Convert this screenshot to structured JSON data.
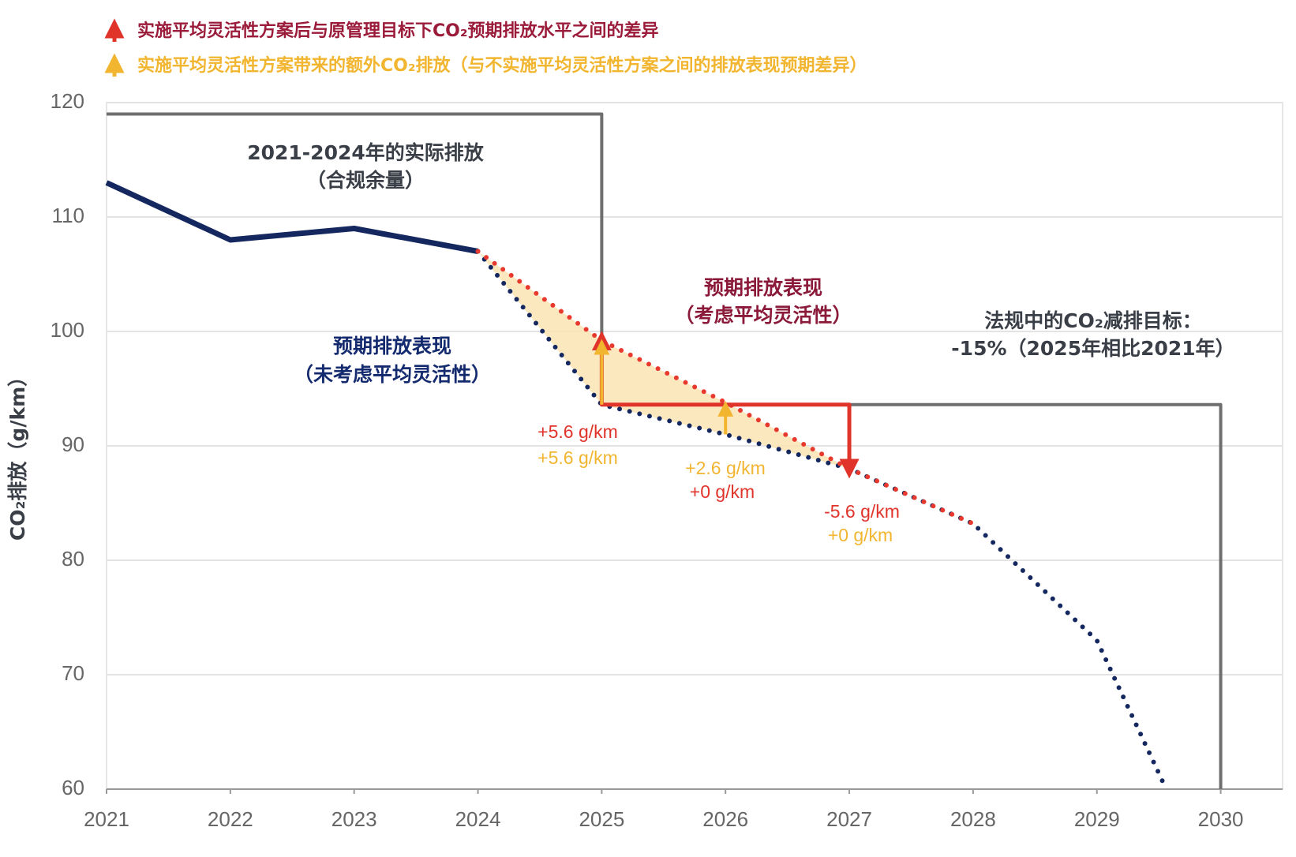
{
  "chart_data": {
    "type": "line",
    "y_label": "CO₂排放（g/km）",
    "xlim": [
      2021,
      2030.5
    ],
    "xticks": [
      2021,
      2022,
      2023,
      2024,
      2025,
      2026,
      2027,
      2028,
      2029,
      2030
    ],
    "ylim": [
      60,
      120
    ],
    "yticks": [
      60,
      70,
      80,
      90,
      100,
      110,
      120
    ],
    "grid": true,
    "legend": [
      {
        "label": "实施平均灵活性方案后与原管理目标下CO₂预期排放水平之间的差异",
        "color": "#e0342b",
        "text_color": "#9b1b3a"
      },
      {
        "label": "实施平均灵活性方案带来的额外CO₂排放（与不实施平均灵活性方案之间的排放表现预期差异）",
        "color": "#f2b530",
        "text_color": "#f2b530"
      }
    ],
    "series": [
      {
        "style": "solid",
        "color": "#6e6e6e",
        "x": [
          2021,
          2025,
          2025,
          2030,
          2030
        ],
        "values": [
          119,
          119,
          93.6,
          93.6,
          60
        ]
      },
      {
        "style": "solid",
        "color": "#14285f",
        "x": [
          2021,
          2022,
          2023,
          2024
        ],
        "values": [
          113,
          108,
          109,
          107
        ]
      },
      {
        "style": "dotted",
        "color": "#14285f",
        "x": [
          2024,
          2025,
          2026,
          2027,
          2028,
          2029,
          2029.56
        ],
        "values": [
          107,
          93.6,
          91,
          88,
          83.2,
          73,
          60
        ]
      },
      {
        "style": "dotted",
        "color": "#e8392f",
        "x": [
          2024,
          2025,
          2026,
          2027,
          2028
        ],
        "values": [
          107,
          99.2,
          93.8,
          88,
          83.2
        ]
      },
      {
        "style": "arrow",
        "color": "#e0342b",
        "x": [
          2025,
          2025,
          2027,
          2027
        ],
        "values": [
          99.2,
          93.6,
          93.6,
          88
        ]
      }
    ],
    "fill_color": "#fbe4b4",
    "yellow_arrows": [
      {
        "x": 2025,
        "from": 93.6,
        "to": 99.2
      },
      {
        "x": 2026,
        "from": 91,
        "to": 93.8
      }
    ],
    "annotations": [
      {
        "text": "2021-2024年的实际排放",
        "color": "#3a3f47"
      },
      {
        "text": "（合规余量）",
        "color": "#3a3f47"
      },
      {
        "text": "预期排放表现",
        "color": "#142a6e"
      },
      {
        "text": "（未考虑平均灵活性）",
        "color": "#142a6e"
      },
      {
        "text": "预期排放表现",
        "color": "#8b1a3a"
      },
      {
        "text": "（考虑平均灵活性）",
        "color": "#8b1a3a"
      },
      {
        "text": "法规中的CO₂减排目标：",
        "color": "#3a3f47"
      },
      {
        "text": "-15%（2025年相比2021年）",
        "color": "#3a3f47"
      },
      {
        "text": "+5.6 g/km",
        "color": "#e0342b"
      },
      {
        "text": "+5.6 g/km",
        "color": "#f2b530"
      },
      {
        "text": "+2.6 g/km",
        "color": "#f2b530"
      },
      {
        "text": "+0 g/km",
        "color": "#e0342b"
      },
      {
        "text": "-5.6 g/km",
        "color": "#e0342b"
      },
      {
        "text": "+0 g/km",
        "color": "#f2b530"
      }
    ]
  }
}
